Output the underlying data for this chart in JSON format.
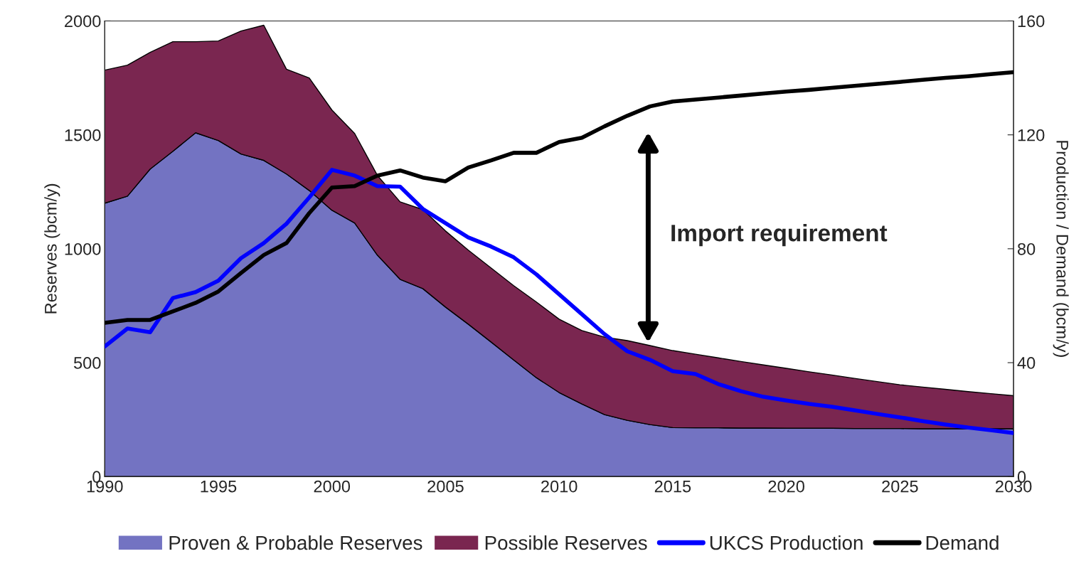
{
  "chart_data": {
    "type": "area",
    "stacked": true,
    "ylabel": "Reserves (bcm/y)",
    "y2label": "Production / Demand (bcm/y)",
    "x": [
      1990,
      1991,
      1992,
      1993,
      1994,
      1995,
      1996,
      1997,
      1998,
      1999,
      2000,
      2001,
      2002,
      2003,
      2004,
      2005,
      2006,
      2007,
      2008,
      2009,
      2010,
      2011,
      2012,
      2013,
      2014,
      2015,
      2016,
      2017,
      2018,
      2019,
      2020,
      2021,
      2022,
      2023,
      2024,
      2025,
      2026,
      2027,
      2028,
      2029,
      2030
    ],
    "series": [
      {
        "name": "Proven & Probable Reserves",
        "color": "#7373c2",
        "values": [
          1200,
          1231,
          1350,
          1428,
          1509,
          1475,
          1416,
          1388,
          1328,
          1256,
          1169,
          1113,
          972,
          866,
          825,
          744,
          669,
          591,
          512,
          434,
          369,
          319,
          272,
          247,
          228,
          215,
          214,
          214,
          213,
          213,
          212,
          212,
          212,
          211,
          211,
          211,
          210,
          210,
          210,
          210,
          210
        ]
      },
      {
        "name": "Possible Reserves",
        "color": "#7a2650",
        "values": [
          584,
          575,
          512,
          481,
          400,
          437,
          540,
          593,
          460,
          494,
          440,
          393,
          350,
          340,
          347,
          334,
          325,
          325,
          326,
          332,
          322,
          322,
          340,
          350,
          347,
          338,
          323,
          307,
          292,
          277,
          263,
          248,
          234,
          220,
          206,
          192,
          183,
          173,
          163,
          154,
          145
        ]
      },
      {
        "name": "UKCS Production",
        "type": "line",
        "axis": "y2",
        "color": "#0000ff",
        "values": [
          45.7,
          52,
          50.7,
          62.7,
          64.8,
          68.8,
          76.7,
          82,
          88.8,
          98,
          107.7,
          105.7,
          102,
          101.8,
          94,
          89,
          84,
          80.8,
          77,
          71,
          64,
          57,
          50,
          44,
          41,
          37,
          36,
          32.5,
          30,
          28,
          26.7,
          25.5,
          24.5,
          23.3,
          22,
          20.8,
          19.5,
          18.3,
          17.2,
          16.3,
          15.3
        ]
      },
      {
        "name": "Demand",
        "type": "line",
        "axis": "y2",
        "color": "#000000",
        "values": [
          54,
          55,
          55,
          58,
          61,
          65,
          71.5,
          77.8,
          82,
          92.5,
          101.5,
          102,
          105.7,
          107.5,
          105,
          103.7,
          108.5,
          111,
          113.7,
          113.7,
          117.5,
          119,
          123,
          126.7,
          130,
          131.7,
          132.4,
          133.1,
          133.8,
          134.5,
          135.2,
          135.8,
          136.5,
          137.2,
          137.9,
          138.6,
          139.3,
          140,
          140.6,
          141.3,
          142
        ]
      }
    ],
    "xlim": [
      1990,
      2030
    ],
    "xticks": [
      1990,
      1995,
      2000,
      2005,
      2010,
      2015,
      2020,
      2025,
      2030
    ],
    "ylim": [
      0,
      2000
    ],
    "yticks": [
      0,
      500,
      1000,
      1500,
      2000
    ],
    "y2lim": [
      0,
      160
    ],
    "y2ticks": [
      0,
      40,
      80,
      120,
      160
    ],
    "annotations": [
      "Import requirement"
    ],
    "grid": false,
    "legend": "bottom"
  }
}
